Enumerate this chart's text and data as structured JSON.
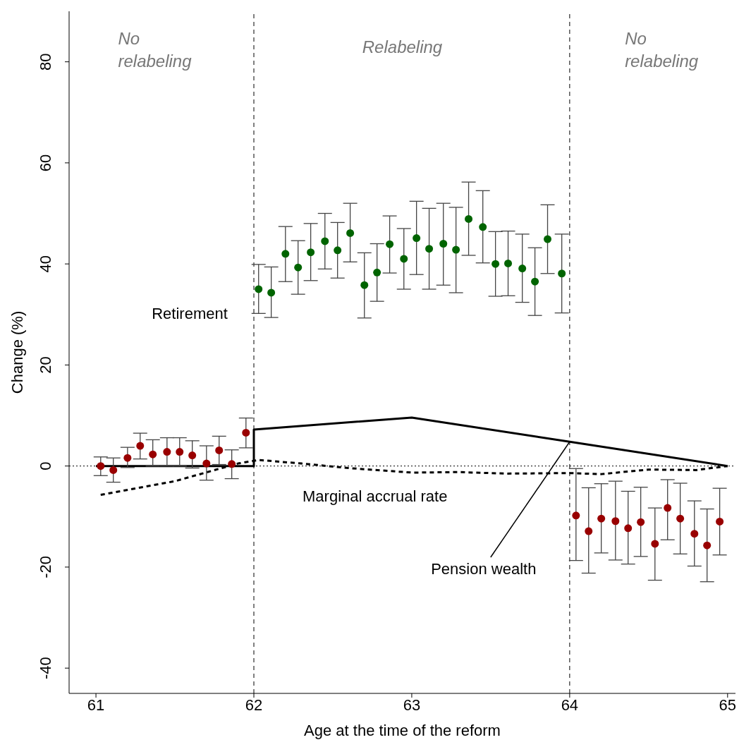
{
  "chart_data": {
    "type": "scatter",
    "xlabel": "Age at the time of the reform",
    "ylabel": "Change (%)",
    "xlim": [
      60.83,
      65.05
    ],
    "ylim": [
      -45,
      90
    ],
    "xticks": [
      61,
      62,
      63,
      64,
      65
    ],
    "yticks": [
      -40,
      -20,
      0,
      20,
      40,
      60,
      80
    ],
    "series": [
      {
        "type": "line",
        "color": "#000000",
        "line_style": "solid",
        "marker": "none",
        "x": [
          61,
          62,
          62,
          63,
          64,
          65
        ],
        "values": [
          0,
          0,
          7.2,
          9.6,
          4.8,
          0
        ]
      },
      {
        "type": "line",
        "color": "#000000",
        "line_style": "dashed",
        "marker": "none",
        "x": [
          61.03,
          61.5,
          61.9,
          62.03,
          62.3,
          62.6,
          63,
          63.3,
          63.6,
          64,
          64.2,
          64.5,
          64.8,
          65
        ],
        "values": [
          -5.7,
          -3,
          0.5,
          1.2,
          0.5,
          -0.4,
          -1.3,
          -1.2,
          -1.5,
          -1.4,
          -1.6,
          -0.7,
          -0.8,
          0
        ]
      },
      {
        "marker": "circle",
        "x": [
          61.03,
          61.11,
          61.2,
          61.28,
          61.36,
          61.45,
          61.53,
          61.61,
          61.7,
          61.78,
          61.86,
          61.95,
          62.03,
          62.11,
          62.2,
          62.28,
          62.36,
          62.45,
          62.53,
          62.61,
          62.7,
          62.78,
          62.86,
          62.95,
          63.03,
          63.11,
          63.2,
          63.28,
          63.36,
          63.45,
          63.53,
          63.61,
          63.7,
          63.78,
          63.86,
          63.95,
          64.04,
          64.12,
          64.2,
          64.29,
          64.37,
          64.45,
          64.54,
          64.62,
          64.7,
          64.79,
          64.87,
          64.95
        ],
        "values": [
          0,
          -0.8,
          1.6,
          4,
          2.3,
          2.8,
          2.8,
          2.1,
          0.5,
          3.1,
          0.4,
          6.6,
          35,
          34.3,
          42,
          39.3,
          42.3,
          44.5,
          42.7,
          46.1,
          35.8,
          38.3,
          43.9,
          41,
          45.1,
          43,
          44,
          42.8,
          48.9,
          47.3,
          40,
          40.1,
          39.1,
          36.5,
          44.9,
          38.1,
          -9.8,
          -12.9,
          -10.4,
          -10.9,
          -12.3,
          -11.1,
          -15.4,
          -8.3,
          -10.4,
          -13.4,
          -15.7,
          -11
        ],
        "errors": [
          [
            -1.9,
            1.8
          ],
          [
            -3.2,
            1.6
          ],
          [
            -0.3,
            3.7
          ],
          [
            1.4,
            6.5
          ],
          [
            0,
            5.2
          ],
          [
            0,
            5.6
          ],
          [
            0,
            5.6
          ],
          [
            -0.4,
            5
          ],
          [
            -2.8,
            4
          ],
          [
            0.3,
            5.9
          ],
          [
            -2.5,
            3.2
          ],
          [
            3.6,
            9.5
          ],
          [
            30.2,
            39.9
          ],
          [
            29.4,
            39.4
          ],
          [
            36.5,
            47.4
          ],
          [
            34,
            44.6
          ],
          [
            36.7,
            48
          ],
          [
            39,
            50
          ],
          [
            37.2,
            48.2
          ],
          [
            40.4,
            52
          ],
          [
            29.3,
            42.2
          ],
          [
            32.6,
            44
          ],
          [
            38.2,
            49.5
          ],
          [
            35,
            47
          ],
          [
            37.9,
            52.4
          ],
          [
            35,
            51
          ],
          [
            35.8,
            52
          ],
          [
            34.3,
            51.2
          ],
          [
            41.7,
            56.2
          ],
          [
            40.2,
            54.5
          ],
          [
            33.6,
            46.4
          ],
          [
            33.7,
            46.5
          ],
          [
            32.4,
            45.9
          ],
          [
            29.8,
            43.2
          ],
          [
            38.1,
            51.7
          ],
          [
            30.3,
            45.9
          ],
          [
            -18.7,
            -0.5
          ],
          [
            -21.2,
            -4.3
          ],
          [
            -17.2,
            -3.5
          ],
          [
            -18.6,
            -3
          ],
          [
            -19.4,
            -5
          ],
          [
            -17.9,
            -4.2
          ],
          [
            -22.6,
            -8.3
          ],
          [
            -14.6,
            -2.7
          ],
          [
            -17.4,
            -3.4
          ],
          [
            -19.8,
            -6.9
          ],
          [
            -22.9,
            -8.5
          ],
          [
            -17.6,
            -4.4
          ]
        ],
        "colors": [
          "#990000",
          "#990000",
          "#990000",
          "#990000",
          "#990000",
          "#990000",
          "#990000",
          "#990000",
          "#990000",
          "#990000",
          "#990000",
          "#990000",
          "#006400",
          "#006400",
          "#006400",
          "#006400",
          "#006400",
          "#006400",
          "#006400",
          "#006400",
          "#006400",
          "#006400",
          "#006400",
          "#006400",
          "#006400",
          "#006400",
          "#006400",
          "#006400",
          "#006400",
          "#006400",
          "#006400",
          "#006400",
          "#006400",
          "#006400",
          "#006400",
          "#006400",
          "#990000",
          "#990000",
          "#990000",
          "#990000",
          "#990000",
          "#990000",
          "#990000",
          "#990000",
          "#990000",
          "#990000",
          "#990000",
          "#990000"
        ]
      }
    ],
    "ref_lines": [
      {
        "axis": "x",
        "value": 62,
        "line_style": "dashed"
      },
      {
        "axis": "x",
        "value": 64,
        "line_style": "dashed"
      },
      {
        "axis": "y",
        "value": 0,
        "line_style": "dotted"
      }
    ],
    "annotations": [
      "No relabeling",
      "Relabeling",
      "No relabeling",
      "Retirement",
      "Marginal accrual rate",
      {
        "text": "Pension wealth",
        "x": 64,
        "y": 4.8
      }
    ]
  }
}
